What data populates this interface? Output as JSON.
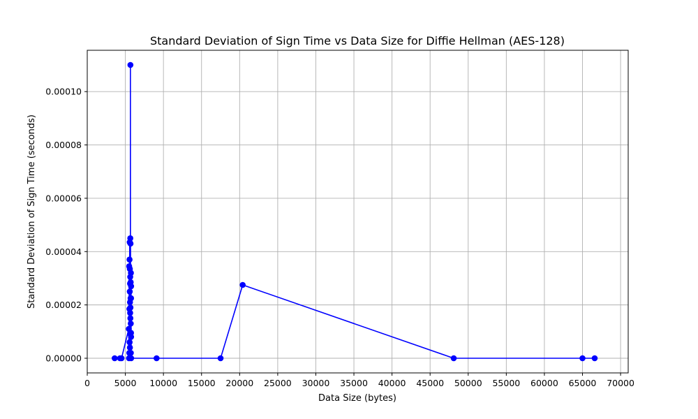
{
  "chart_data": {
    "type": "line",
    "title": "Standard Deviation of Sign Time vs Data Size for Diffie Hellman (AES-128)",
    "xlabel": "Data Size (bytes)",
    "ylabel": "Standard Deviation of Sign Time (seconds)",
    "xlim": [
      0,
      71000
    ],
    "ylim": [
      -5.5e-06,
      0.0001155
    ],
    "grid": true,
    "line_color": "#0000ff",
    "marker": "circle",
    "x_ticks": [
      {
        "value": 0,
        "label": "0"
      },
      {
        "value": 5000,
        "label": "5000"
      },
      {
        "value": 10000,
        "label": "10000"
      },
      {
        "value": 15000,
        "label": "15000"
      },
      {
        "value": 20000,
        "label": "20000"
      },
      {
        "value": 25000,
        "label": "25000"
      },
      {
        "value": 30000,
        "label": "30000"
      },
      {
        "value": 35000,
        "label": "35000"
      },
      {
        "value": 40000,
        "label": "40000"
      },
      {
        "value": 45000,
        "label": "45000"
      },
      {
        "value": 50000,
        "label": "50000"
      },
      {
        "value": 55000,
        "label": "55000"
      },
      {
        "value": 60000,
        "label": "60000"
      },
      {
        "value": 65000,
        "label": "65000"
      },
      {
        "value": 70000,
        "label": "70000"
      }
    ],
    "y_ticks": [
      {
        "value": 0,
        "label": "0.00000"
      },
      {
        "value": 2e-05,
        "label": "0.00002"
      },
      {
        "value": 4e-05,
        "label": "0.00004"
      },
      {
        "value": 6e-05,
        "label": "0.00006"
      },
      {
        "value": 8e-05,
        "label": "0.00008"
      },
      {
        "value": 0.0001,
        "label": "0.00010"
      }
    ],
    "series": [
      {
        "x": [
          3600,
          4300,
          4500,
          5450,
          5480,
          5500,
          5520,
          5530,
          5550,
          5560,
          5570,
          5580,
          5590,
          5600,
          5610,
          5620,
          5630,
          5640,
          5650,
          5660,
          5665,
          5670,
          5675,
          5680,
          5690,
          5700,
          5710,
          5720,
          5730,
          5740,
          5745,
          5750,
          5755,
          5760,
          9100,
          17500,
          20400,
          48100,
          65000,
          66600
        ],
        "y": [
          0,
          0,
          0,
          1.1e-05,
          0,
          3.45e-05,
          2e-06,
          1.85e-05,
          3.7e-05,
          6e-06,
          4.35e-05,
          2.5e-05,
          3.35e-05,
          4e-06,
          2.1e-05,
          2.8e-05,
          1.7e-05,
          3.05e-05,
          4.5e-05,
          1.5e-05,
          0.00011,
          1.9e-05,
          9e-06,
          4.3e-05,
          2.25e-05,
          2.85e-05,
          1.3e-05,
          2e-06,
          3.2e-05,
          9.5e-06,
          2.25e-05,
          8e-06,
          2.7e-05,
          0,
          0,
          0,
          2.75e-05,
          0,
          0,
          0
        ]
      }
    ]
  }
}
